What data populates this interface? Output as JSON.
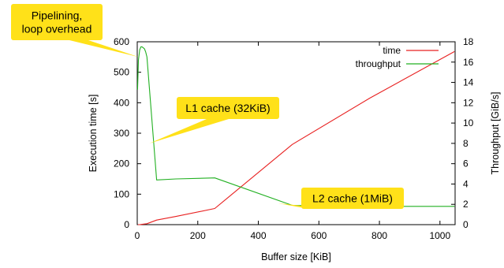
{
  "chart_data": {
    "type": "line",
    "x_axis": {
      "label": "Buffer size [KiB]",
      "range": [
        0,
        1050
      ],
      "ticks": [
        0,
        200,
        400,
        600,
        800,
        1000
      ]
    },
    "y_left": {
      "label": "Execution time [s]",
      "range": [
        0,
        600
      ],
      "ticks": [
        0,
        100,
        200,
        300,
        400,
        500,
        600
      ]
    },
    "y_right": {
      "label": "Throughput [GiB/s]",
      "range": [
        0,
        18
      ],
      "ticks": [
        0,
        2,
        4,
        6,
        8,
        10,
        12,
        14,
        16,
        18
      ]
    },
    "grid": false,
    "legend_position": "top-right",
    "series": [
      {
        "name": "time",
        "color": "#e82020",
        "axis": "left",
        "x": [
          2,
          8,
          16,
          32,
          64,
          128,
          256,
          512,
          768,
          1048
        ],
        "y": [
          0,
          0,
          1,
          3,
          15,
          27,
          53,
          263,
          415,
          568
        ]
      },
      {
        "name": "throughput",
        "color": "#22b022",
        "axis": "right",
        "x": [
          1,
          4,
          8,
          12,
          16,
          20,
          24,
          28,
          32,
          64,
          128,
          256,
          512,
          768,
          1048
        ],
        "y": [
          13.3,
          16.2,
          17.2,
          17.5,
          17.5,
          17.4,
          17.3,
          17.0,
          16.5,
          4.4,
          4.5,
          4.6,
          1.9,
          1.8,
          1.8
        ]
      }
    ],
    "annotations": [
      {
        "id": "pipelining",
        "lines": [
          "Pipelining,",
          "loop overhead"
        ],
        "target_x": 4,
        "target_y": 550,
        "target_axis": "left"
      },
      {
        "id": "l1",
        "lines": [
          "L1 cache (32KiB)"
        ],
        "target_x": 40,
        "target_y": 8.0,
        "target_axis": "right"
      },
      {
        "id": "l2",
        "lines": [
          "L2 cache (1MiB)"
        ],
        "target_x": 465,
        "target_y": 2.1,
        "target_axis": "right"
      }
    ],
    "callout_color": "#ffe119"
  }
}
